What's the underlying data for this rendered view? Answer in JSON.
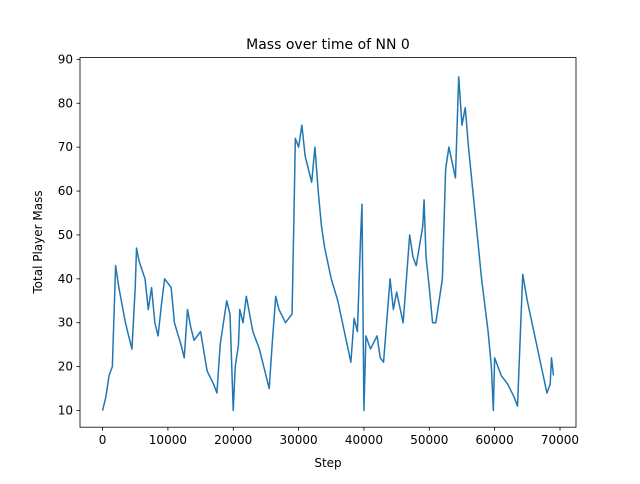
{
  "chart_data": {
    "type": "line",
    "title": "Mass over time of NN 0",
    "x_label": "Step",
    "y_label": "Total Player Mass",
    "x": [
      0,
      500,
      1000,
      1500,
      2000,
      2500,
      3500,
      4000,
      4500,
      5000,
      5200,
      5600,
      6500,
      7000,
      7500,
      8000,
      8500,
      9000,
      9500,
      10500,
      11000,
      12000,
      12500,
      13000,
      13500,
      14000,
      15000,
      16000,
      17000,
      17500,
      18000,
      18500,
      19000,
      19500,
      20000,
      20300,
      20800,
      21000,
      21500,
      22000,
      23000,
      24000,
      25500,
      26000,
      26500,
      27000,
      28000,
      28500,
      29000,
      29300,
      29500,
      30000,
      30500,
      31000,
      32000,
      32500,
      33000,
      33500,
      34000,
      35000,
      36000,
      37000,
      38000,
      38500,
      39000,
      39500,
      39700,
      40000,
      40300,
      41000,
      42000,
      42500,
      43000,
      44000,
      44500,
      45000,
      46000,
      47000,
      47500,
      48000,
      49000,
      49200,
      49500,
      50000,
      50500,
      51000,
      52000,
      52500,
      53000,
      54000,
      54500,
      55000,
      55500,
      56000,
      57000,
      58000,
      59000,
      59500,
      59800,
      60000,
      60500,
      61000,
      62000,
      63000,
      63500,
      64000,
      64300,
      65000,
      66000,
      67000,
      68000,
      68500,
      68700,
      69000
    ],
    "series": [
      {
        "name": "mass",
        "color": "#1f77b4",
        "values": [
          10,
          13,
          18,
          20,
          43,
          38,
          30,
          27,
          24,
          38,
          47,
          44,
          40,
          33,
          38,
          30,
          27,
          34,
          40,
          38,
          30,
          25,
          22,
          33,
          29,
          26,
          28,
          19,
          16,
          14,
          25,
          30,
          35,
          32,
          10,
          20,
          25,
          33,
          30,
          36,
          28,
          24,
          15,
          26,
          36,
          33,
          30,
          31,
          32,
          55,
          72,
          70,
          75,
          68,
          62,
          70,
          60,
          52,
          47,
          40,
          35,
          28,
          21,
          31,
          28,
          50,
          57,
          10,
          27,
          24,
          27,
          22,
          21,
          40,
          33,
          37,
          30,
          50,
          45,
          43,
          52,
          58,
          45,
          38,
          30,
          30,
          40,
          65,
          70,
          63,
          86,
          75,
          79,
          70,
          55,
          40,
          28,
          20,
          10,
          22,
          20,
          18,
          16,
          13,
          11,
          30,
          41,
          35,
          28,
          21,
          14,
          16,
          22,
          18
        ]
      }
    ],
    "xlim": [
      -3450,
      72450
    ],
    "ylim": [
      6.2,
      90.4
    ],
    "xticks": [
      0,
      10000,
      20000,
      30000,
      40000,
      50000,
      60000,
      70000
    ],
    "yticks": [
      10,
      20,
      30,
      40,
      50,
      60,
      70,
      80,
      90
    ]
  }
}
